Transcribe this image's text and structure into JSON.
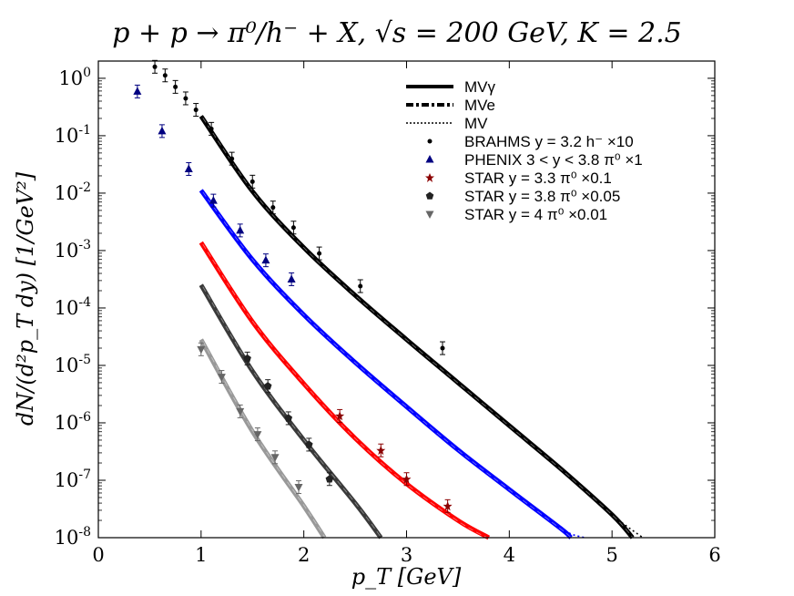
{
  "chart_data": {
    "type": "scatter",
    "title": "p + p → π⁰/h⁻ + X, √s = 200 GeV, K = 2.5",
    "xlabel": "p_T [GeV]",
    "ylabel": "dN/(d²p_T dy) [1/GeV²]",
    "xlim": [
      0,
      6
    ],
    "ylim_log10": [
      -8,
      0.3
    ],
    "xticks": [
      0,
      1,
      2,
      3,
      4,
      5,
      6
    ],
    "xtick_labels": [
      "0",
      "1",
      "2",
      "3",
      "4",
      "5",
      "6"
    ],
    "ytick_exponents": [
      0,
      -1,
      -2,
      -3,
      -4,
      -5,
      -6,
      -7,
      -8
    ],
    "ytick_base": "10",
    "legend_position": "top-right",
    "legend": [
      {
        "name": "MV^γ",
        "label": "MVγ",
        "kind": "line",
        "style": "solid"
      },
      {
        "name": "MV^e",
        "label": "MVe",
        "kind": "line",
        "style": "dashdot"
      },
      {
        "name": "MV",
        "label": "MV",
        "kind": "line",
        "style": "dotted"
      },
      {
        "name": "BRAHMS y = 3.2 h⁻ ×10",
        "label": "BRAHMS y = 3.2 h⁻ ×10",
        "kind": "marker",
        "marker": "dot",
        "color": "#000000"
      },
      {
        "name": "PHENIX 3 < y < 3.8 π⁰ ×1",
        "label": "PHENIX 3 < y < 3.8 π⁰ ×1",
        "kind": "marker",
        "marker": "triangle-up",
        "color": "#000080"
      },
      {
        "name": "STAR y = 3.3 π⁰ ×0.1",
        "label": "STAR y = 3.3 π⁰ ×0.1",
        "kind": "marker",
        "marker": "star",
        "color": "#8b0000"
      },
      {
        "name": "STAR y = 3.8 π⁰ ×0.05",
        "label": "STAR y = 3.8 π⁰ ×0.05",
        "kind": "marker",
        "marker": "pentagon",
        "color": "#222222"
      },
      {
        "name": "STAR y = 4 π⁰ ×0.01",
        "label": "STAR y = 4 π⁰ ×0.01",
        "kind": "marker",
        "marker": "triangle-down",
        "color": "#666666"
      }
    ],
    "curves": [
      {
        "name": "BRAHMS theory",
        "color": "#000000",
        "x": [
          1.0,
          1.5,
          2.0,
          2.5,
          3.0,
          3.5,
          4.0,
          4.5,
          5.0,
          5.2
        ],
        "log10_y": [
          -0.66,
          -1.97,
          -2.95,
          -3.78,
          -4.55,
          -5.3,
          -6.05,
          -6.8,
          -7.6,
          -8.0
        ],
        "dotted_end": [
          5.3,
          -8.0
        ]
      },
      {
        "name": "PHENIX theory",
        "color": "#0000ff",
        "x": [
          1.0,
          1.5,
          2.0,
          2.5,
          3.0,
          3.5,
          4.0,
          4.5,
          4.6
        ],
        "log10_y": [
          -1.95,
          -3.16,
          -4.12,
          -4.95,
          -5.72,
          -6.47,
          -7.16,
          -7.84,
          -8.0
        ],
        "dotted_end": [
          4.73,
          -8.0
        ]
      },
      {
        "name": "STAR y=3.3 theory",
        "color": "#ff0000",
        "x": [
          1.0,
          1.5,
          2.0,
          2.5,
          3.0,
          3.5,
          3.8
        ],
        "log10_y": [
          -2.86,
          -4.24,
          -5.32,
          -6.27,
          -7.06,
          -7.7,
          -8.0
        ]
      },
      {
        "name": "STAR y=3.8 theory",
        "color": "#3a3a3a",
        "x": [
          1.0,
          1.5,
          2.0,
          2.5,
          2.75
        ],
        "log10_y": [
          -3.6,
          -5.1,
          -6.3,
          -7.4,
          -8.0
        ]
      },
      {
        "name": "STAR y=4 theory",
        "color": "#999999",
        "x": [
          1.0,
          1.5,
          2.0,
          2.2
        ],
        "log10_y": [
          -4.55,
          -6.15,
          -7.45,
          -8.0
        ]
      }
    ],
    "points": {
      "BRAHMS": {
        "x": [
          0.55,
          0.65,
          0.75,
          0.85,
          0.95,
          1.1,
          1.3,
          1.5,
          1.7,
          1.9,
          2.15,
          2.55,
          3.35
        ],
        "log10_y": [
          0.2,
          0.05,
          -0.15,
          -0.35,
          -0.55,
          -0.88,
          -1.4,
          -1.8,
          -2.25,
          -2.6,
          -3.05,
          -3.62,
          -4.7
        ]
      },
      "PHENIX": {
        "x": [
          0.38,
          0.62,
          0.88,
          1.12,
          1.38,
          1.63,
          1.88
        ],
        "log10_y": [
          -0.23,
          -0.92,
          -1.58,
          -2.13,
          -2.65,
          -3.17,
          -3.5
        ]
      },
      "STAR_y3.3": {
        "x": [
          2.35,
          2.75,
          3.0,
          3.4
        ],
        "log10_y": [
          -5.88,
          -6.48,
          -6.98,
          -7.45
        ]
      },
      "STAR_y3.8": {
        "x": [
          1.45,
          1.65,
          1.85,
          2.05,
          2.25
        ],
        "log10_y": [
          -4.88,
          -5.36,
          -5.92,
          -6.38,
          -6.98
        ]
      },
      "STAR_y4": {
        "x": [
          1.0,
          1.2,
          1.38,
          1.55,
          1.72,
          1.95
        ],
        "log10_y": [
          -4.72,
          -5.2,
          -5.8,
          -6.2,
          -6.6,
          -7.12
        ]
      }
    }
  }
}
